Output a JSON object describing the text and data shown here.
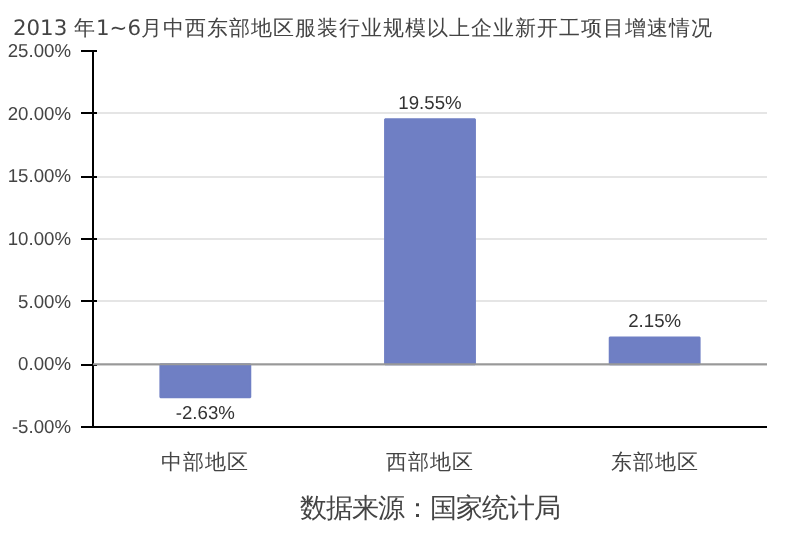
{
  "chart_data": {
    "type": "bar",
    "title": "2013 年1~6月中西东部地区服装行业规模以上企业新开工项目增速情况",
    "categories": [
      "中部地区",
      "西部地区",
      "东部地区"
    ],
    "values": [
      -2.63,
      19.55,
      2.15
    ],
    "value_labels": [
      "-2.63%",
      "19.55%",
      "2.15%"
    ],
    "color": "#6f7fc4",
    "ylim": [
      -5,
      25
    ],
    "yticks": [
      {
        "value": -5,
        "label": "-5.00%"
      },
      {
        "value": 0,
        "label": "0.00%"
      },
      {
        "value": 5,
        "label": "5.00%"
      },
      {
        "value": 10,
        "label": "10.00%"
      },
      {
        "value": 15,
        "label": "15.00%"
      },
      {
        "value": 20,
        "label": "20.00%"
      },
      {
        "value": 25,
        "label": "25.00%"
      }
    ],
    "grid": "y",
    "annotations": [
      "数据来源：国家统计局"
    ]
  }
}
